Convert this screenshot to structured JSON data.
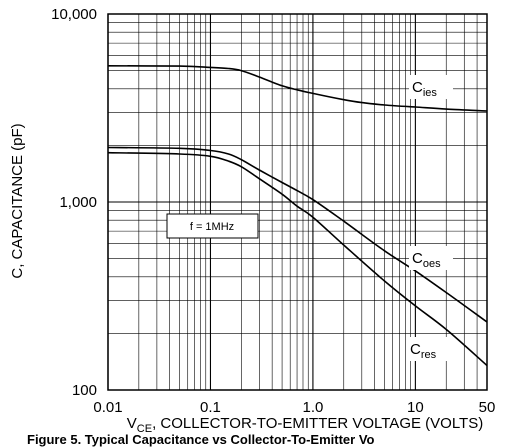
{
  "chart_data": {
    "type": "line",
    "title": "",
    "caption": "Figure 5. Typical Capacitance vs Collector-To-Emitter Vo",
    "xlabel": "V_CE, COLLECTOR-TO-EMITTER VOLTAGE (VOLTS)",
    "ylabel": "C, CAPACITANCE (pF)",
    "xscale": "log",
    "yscale": "log",
    "xlim": [
      0.01,
      50
    ],
    "ylim": [
      100,
      10000
    ],
    "grid": true,
    "x_ticks": [
      {
        "value": 0.01,
        "label": "0.01"
      },
      {
        "value": 0.1,
        "label": "0.1"
      },
      {
        "value": 1,
        "label": "1.0"
      },
      {
        "value": 10,
        "label": "10"
      },
      {
        "value": 50,
        "label": "50"
      }
    ],
    "y_ticks": [
      {
        "value": 100,
        "label": "100"
      },
      {
        "value": 1000,
        "label": "1,000"
      },
      {
        "value": 10000,
        "label": "10,000"
      }
    ],
    "annotation": "f = 1MHz",
    "series": [
      {
        "name": "Cies",
        "label_main": "C",
        "label_sub": "ies",
        "x": [
          0.01,
          0.05,
          0.1,
          0.15,
          0.2,
          0.3,
          0.5,
          0.7,
          1,
          2,
          3,
          5,
          10,
          20,
          50
        ],
        "y": [
          5300,
          5280,
          5200,
          5130,
          5000,
          4620,
          4150,
          3950,
          3780,
          3500,
          3380,
          3280,
          3200,
          3120,
          3050
        ]
      },
      {
        "name": "Coes",
        "label_main": "C",
        "label_sub": "oes",
        "x": [
          0.01,
          0.05,
          0.1,
          0.15,
          0.2,
          0.3,
          0.5,
          0.7,
          1,
          2,
          5,
          10,
          20,
          50
        ],
        "y": [
          1950,
          1930,
          1880,
          1800,
          1680,
          1480,
          1270,
          1150,
          1030,
          790,
          550,
          430,
          330,
          230
        ]
      },
      {
        "name": "Cres",
        "label_main": "C",
        "label_sub": "res",
        "x": [
          0.01,
          0.05,
          0.1,
          0.15,
          0.2,
          0.3,
          0.5,
          0.7,
          1,
          2,
          5,
          10,
          20,
          50
        ],
        "y": [
          1830,
          1800,
          1750,
          1650,
          1540,
          1330,
          1100,
          950,
          830,
          590,
          380,
          280,
          210,
          135
        ]
      }
    ]
  }
}
